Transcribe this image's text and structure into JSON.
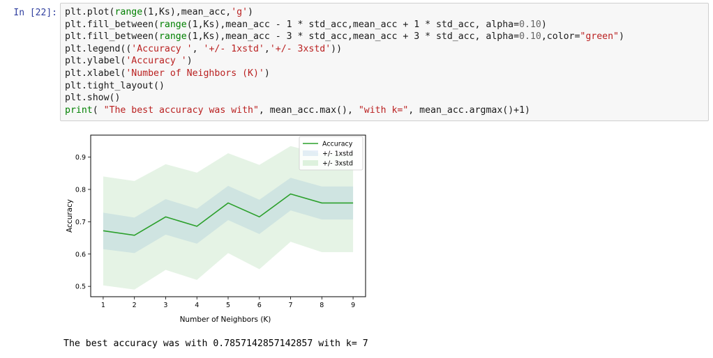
{
  "cell": {
    "prompt": "In [22]:",
    "code_lines": [
      [
        {
          "t": "plt.plot("
        },
        {
          "t": "range",
          "c": "kw"
        },
        {
          "t": "(1,Ks),mean_acc,"
        },
        {
          "t": "'g'",
          "c": "str"
        },
        {
          "t": ")"
        }
      ],
      [
        {
          "t": "plt.fill_between("
        },
        {
          "t": "range",
          "c": "kw"
        },
        {
          "t": "(1,Ks),mean_acc - 1 * std_acc,mean_acc + 1 * std_acc, alpha="
        },
        {
          "t": "0.10",
          "c": "num"
        },
        {
          "t": ")"
        }
      ],
      [
        {
          "t": "plt.fill_between("
        },
        {
          "t": "range",
          "c": "kw"
        },
        {
          "t": "(1,Ks),mean_acc - 3 * std_acc,mean_acc + 3 * std_acc, alpha="
        },
        {
          "t": "0.10",
          "c": "num"
        },
        {
          "t": ",color="
        },
        {
          "t": "\"green\"",
          "c": "str"
        },
        {
          "t": ")"
        }
      ],
      [
        {
          "t": "plt.legend(("
        },
        {
          "t": "'Accuracy '",
          "c": "str"
        },
        {
          "t": ", "
        },
        {
          "t": "'+/- 1xstd'",
          "c": "str"
        },
        {
          "t": ","
        },
        {
          "t": "'+/- 3xstd'",
          "c": "str"
        },
        {
          "t": "))"
        }
      ],
      [
        {
          "t": "plt.ylabel("
        },
        {
          "t": "'Accuracy '",
          "c": "str"
        },
        {
          "t": ")"
        }
      ],
      [
        {
          "t": "plt.xlabel("
        },
        {
          "t": "'Number of Neighbors (K)'",
          "c": "str"
        },
        {
          "t": ")"
        }
      ],
      [
        {
          "t": "plt.tight_layout()"
        }
      ],
      [
        {
          "t": "plt.show()"
        }
      ],
      [
        {
          "t": "print",
          "c": "kw"
        },
        {
          "t": "( "
        },
        {
          "t": "\"The best accuracy was with\"",
          "c": "str"
        },
        {
          "t": ", mean_acc.max(), "
        },
        {
          "t": "\"with k=\"",
          "c": "str"
        },
        {
          "t": ", mean_acc.argmax()+1)"
        }
      ]
    ]
  },
  "output": {
    "text": "The best accuracy was with 0.7857142857142857 with k= 7"
  },
  "colors": {
    "line": "#2ca02c",
    "band1": "#3a86c8",
    "band3": "#2ca02c"
  },
  "chart_data": {
    "type": "line",
    "x": [
      1,
      2,
      3,
      4,
      5,
      6,
      7,
      8,
      9
    ],
    "series": [
      {
        "name": "Accuracy",
        "values": [
          0.672,
          0.658,
          0.715,
          0.686,
          0.758,
          0.715,
          0.786,
          0.758,
          0.758
        ]
      },
      {
        "name": "+/- 1xstd",
        "lower": [
          0.615,
          0.603,
          0.66,
          0.632,
          0.705,
          0.662,
          0.735,
          0.707,
          0.707
        ],
        "upper": [
          0.728,
          0.713,
          0.77,
          0.74,
          0.811,
          0.768,
          0.836,
          0.809,
          0.809
        ]
      },
      {
        "name": "+/- 3xstd",
        "lower": [
          0.503,
          0.49,
          0.551,
          0.52,
          0.603,
          0.553,
          0.638,
          0.606,
          0.606
        ],
        "upper": [
          0.84,
          0.826,
          0.878,
          0.852,
          0.912,
          0.876,
          0.934,
          0.91,
          0.91
        ]
      }
    ],
    "xlabel": "Number of Neighbors (K)",
    "ylabel": "Accuracy",
    "xticks": [
      "1",
      "2",
      "3",
      "4",
      "5",
      "6",
      "7",
      "8",
      "9"
    ],
    "yticks": [
      "0.5",
      "0.6",
      "0.7",
      "0.8",
      "0.9"
    ],
    "xlim": [
      0.6,
      9.4
    ],
    "ylim": [
      0.468,
      0.968
    ],
    "legend_position": "top-right",
    "grid": false
  }
}
